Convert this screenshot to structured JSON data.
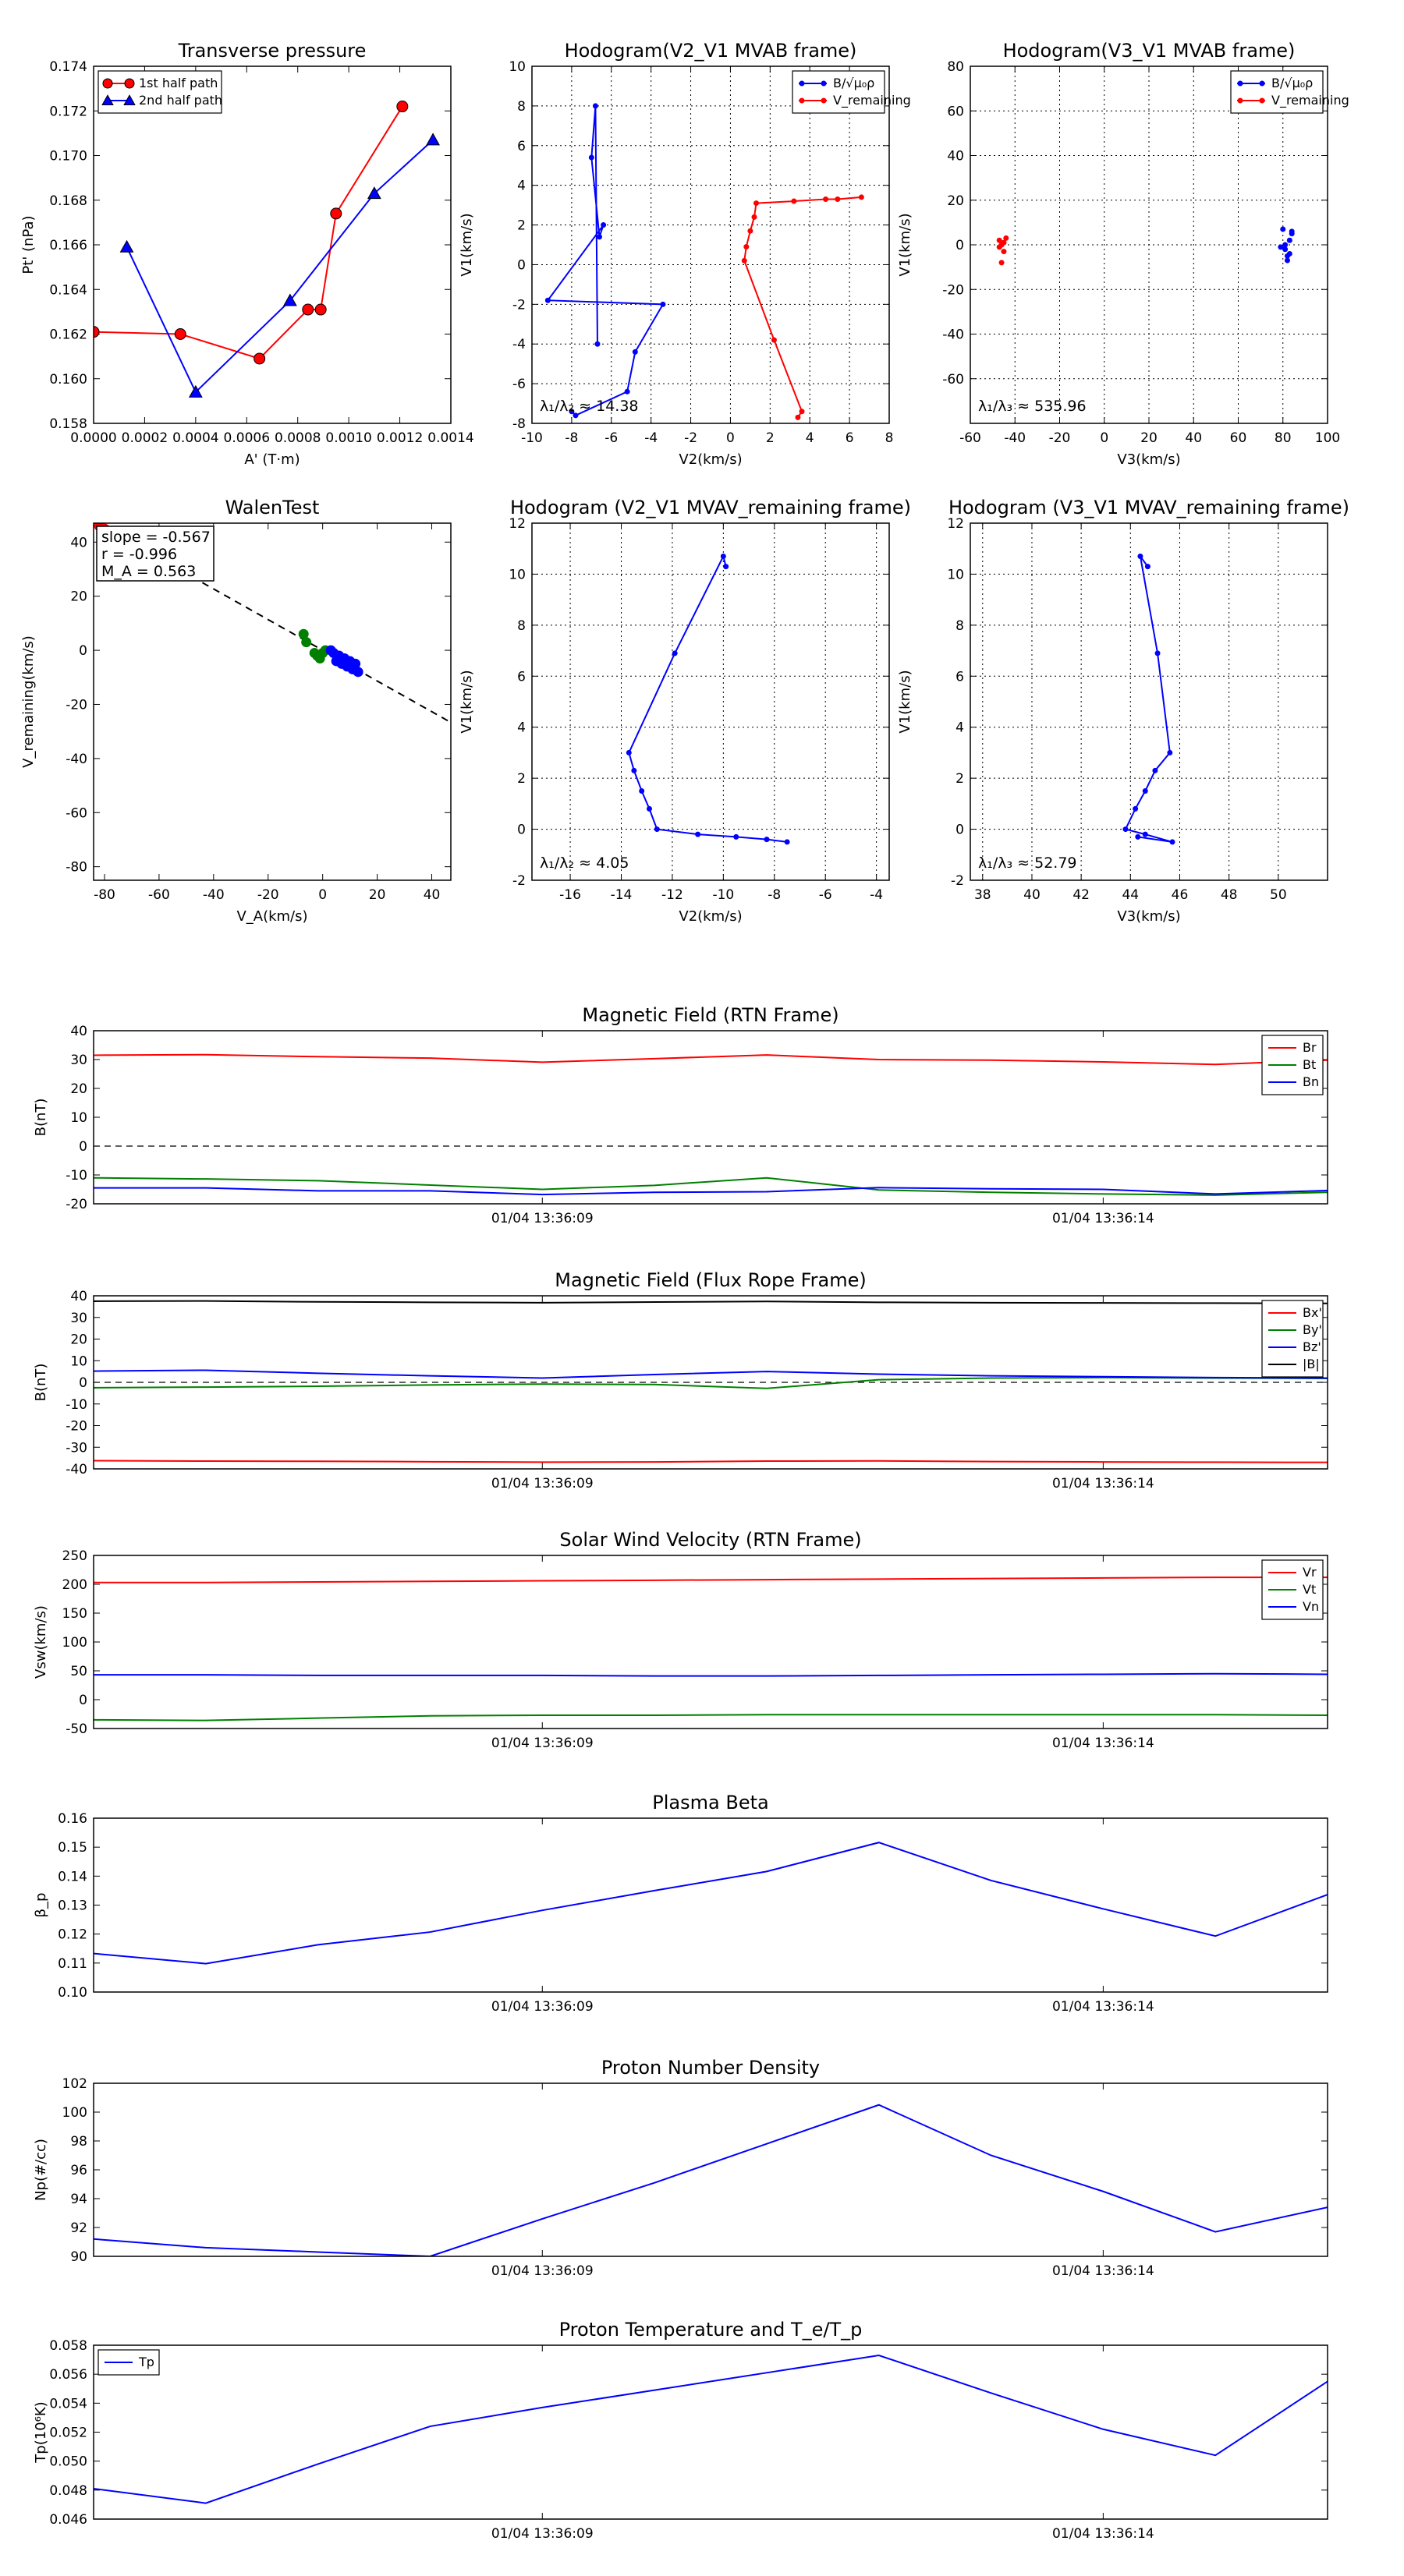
{
  "colors": {
    "red": "#ff0000",
    "blue": "#0000ff",
    "green": "#008000",
    "black": "#000000"
  },
  "chart_data": [
    {
      "id": "transverse-pressure",
      "type": "line",
      "title": "Transverse pressure",
      "xlabel": "A' (T·m)",
      "ylabel": "Pt' (nPa)",
      "xlim": [
        0,
        0.0014
      ],
      "ylim": [
        0.158,
        0.174
      ],
      "xticks": [
        0,
        0.0002,
        0.0004,
        0.0006,
        0.0008,
        0.001,
        0.0012,
        0.0014
      ],
      "xticklabels": [
        "0.0000",
        "0.0002",
        "0.0004",
        "0.0006",
        "0.0008",
        "0.0010",
        "0.0012",
        "0.0014"
      ],
      "yticks": [
        0.158,
        0.16,
        0.162,
        0.164,
        0.166,
        0.168,
        0.17,
        0.172,
        0.174
      ],
      "yticklabels": [
        "0.158",
        "0.160",
        "0.162",
        "0.164",
        "0.166",
        "0.168",
        "0.170",
        "0.172",
        "0.174"
      ],
      "legend": {
        "position": "top-left",
        "entries": [
          {
            "label": "1st half path",
            "color": "red",
            "marker": "circle"
          },
          {
            "label": "2nd half path",
            "color": "blue",
            "marker": "triangle"
          }
        ]
      },
      "series": [
        {
          "name": "1st half path",
          "color": "red",
          "marker": "circle",
          "x": [
            0.0,
            0.00034,
            0.00065,
            0.00084,
            0.00089,
            0.00095,
            0.00121
          ],
          "y": [
            0.1621,
            0.162,
            0.1609,
            0.1631,
            0.1631,
            0.1674,
            0.1722
          ]
        },
        {
          "name": "2nd half path",
          "color": "blue",
          "marker": "triangle",
          "x": [
            0.00013,
            0.0004,
            0.00077,
            0.0011,
            0.00133
          ],
          "y": [
            0.1659,
            0.1594,
            0.1635,
            0.1683,
            0.1707
          ]
        }
      ]
    },
    {
      "id": "hodogram-v2v1-mvab",
      "type": "line",
      "title": "Hodogram(V2_V1 MVAB frame)",
      "xlabel": "V2(km/s)",
      "ylabel": "V1(km/s)",
      "xlim": [
        -10,
        8
      ],
      "ylim": [
        -8,
        10
      ],
      "xticks": [
        -10,
        -8,
        -6,
        -4,
        -2,
        0,
        2,
        4,
        6,
        8
      ],
      "yticks": [
        -8,
        -6,
        -4,
        -2,
        0,
        2,
        4,
        6,
        8,
        10
      ],
      "annotation": "λ₁/λ₂ ≈ 14.38",
      "grid": true,
      "legend": {
        "position": "top-right",
        "entries": [
          {
            "label": "B/√μ₀ρ",
            "color": "blue"
          },
          {
            "label": "V_remaining",
            "color": "red"
          }
        ]
      },
      "series": [
        {
          "name": "B/√μ₀ρ",
          "color": "blue",
          "x": [
            -6.7,
            -6.8,
            -7.0,
            -6.6,
            -6.4,
            -9.2,
            -3.4,
            -4.8,
            -5.2,
            -7.8,
            -8.0
          ],
          "y": [
            -4.0,
            8.0,
            5.4,
            1.4,
            2.0,
            -1.8,
            -2.0,
            -4.4,
            -6.4,
            -7.6,
            -7.4
          ]
        },
        {
          "name": "V_remaining",
          "color": "red",
          "x": [
            6.6,
            5.4,
            4.8,
            3.2,
            1.3,
            1.2,
            1.0,
            0.8,
            0.7,
            2.2,
            3.6,
            3.4
          ],
          "y": [
            3.4,
            3.3,
            3.3,
            3.2,
            3.1,
            2.4,
            1.7,
            0.9,
            0.2,
            -3.8,
            -7.4,
            -7.7
          ]
        }
      ]
    },
    {
      "id": "hodogram-v3v1-mvab",
      "type": "scatter",
      "title": "Hodogram(V3_V1 MVAB frame)",
      "xlabel": "V3(km/s)",
      "ylabel": "V1(km/s)",
      "xlim": [
        -60,
        100
      ],
      "ylim": [
        -80,
        80
      ],
      "xticks": [
        -60,
        -40,
        -20,
        0,
        20,
        40,
        60,
        80,
        100
      ],
      "yticks": [
        -60,
        -40,
        -20,
        0,
        20,
        40,
        60,
        80
      ],
      "annotation": "λ₁/λ₃ ≈ 535.96",
      "grid": true,
      "legend": {
        "position": "top-right",
        "entries": [
          {
            "label": "B/√μ₀ρ",
            "color": "blue"
          },
          {
            "label": "V_remaining",
            "color": "red"
          }
        ]
      },
      "series": [
        {
          "name": "B/√μ₀ρ",
          "color": "blue",
          "x": [
            80,
            81,
            84,
            83,
            82,
            79,
            81,
            83,
            82,
            84
          ],
          "y": [
            7,
            -2,
            6,
            -4,
            -7,
            -1,
            0,
            2,
            -5,
            5
          ]
        },
        {
          "name": "V_remaining",
          "color": "red",
          "x": [
            -46,
            -45,
            -47,
            -44,
            -46,
            -47,
            -45
          ],
          "y": [
            -8,
            -3,
            2,
            3,
            0,
            -1,
            1
          ]
        }
      ]
    },
    {
      "id": "walen-test",
      "type": "scatter",
      "title": "WalenTest",
      "xlabel": "V_A(km/s)",
      "ylabel": "V_remaining(km/s)",
      "xlim": [
        -84,
        47
      ],
      "ylim": [
        -85,
        47
      ],
      "xticks": [
        -80,
        -60,
        -40,
        -20,
        0,
        20,
        40
      ],
      "yticks": [
        -80,
        -60,
        -40,
        -20,
        0,
        20,
        40
      ],
      "annotation_lines": [
        "slope = -0.567",
        "r = -0.996",
        "M_A = 0.563"
      ],
      "fit": {
        "slope": -0.567,
        "intercept": 0
      },
      "series": [
        {
          "name": "red",
          "color": "red",
          "x": [
            -82,
            -80
          ],
          "y": [
            46,
            45
          ]
        },
        {
          "name": "green",
          "color": "green",
          "x": [
            -7,
            -6,
            -3,
            -2,
            -1,
            0,
            1
          ],
          "y": [
            6,
            3,
            -1,
            -2,
            -3,
            -1,
            0
          ]
        },
        {
          "name": "blue",
          "color": "blue",
          "x": [
            3,
            4,
            5,
            6,
            7,
            8,
            9,
            10,
            11,
            12,
            13
          ],
          "y": [
            0,
            -1,
            -4,
            -2,
            -5,
            -3,
            -6,
            -4,
            -7,
            -5,
            -8
          ]
        }
      ]
    },
    {
      "id": "hodogram-v2v1-mvav",
      "type": "line",
      "title": "Hodogram (V2_V1 MVAV_remaining frame)",
      "xlabel": "V2(km/s)",
      "ylabel": "V1(km/s)",
      "xlim": [
        -17.5,
        -3.5
      ],
      "ylim": [
        -2,
        12
      ],
      "xticks": [
        -16,
        -14,
        -12,
        -10,
        -8,
        -6,
        -4
      ],
      "yticks": [
        -2,
        0,
        2,
        4,
        6,
        8,
        10,
        12
      ],
      "annotation": "λ₁/λ₂ ≈ 4.05",
      "grid": true,
      "series": [
        {
          "name": "V",
          "color": "blue",
          "x": [
            -9.9,
            -10.0,
            -11.9,
            -13.7,
            -13.5,
            -13.2,
            -12.9,
            -12.6,
            -11.0,
            -9.5,
            -8.3,
            -7.5
          ],
          "y": [
            10.3,
            10.7,
            6.9,
            3.0,
            2.3,
            1.5,
            0.8,
            0.0,
            -0.2,
            -0.3,
            -0.4,
            -0.5
          ]
        }
      ]
    },
    {
      "id": "hodogram-v3v1-mvav",
      "type": "line",
      "title": "Hodogram (V3_V1 MVAV_remaining frame)",
      "xlabel": "V3(km/s)",
      "ylabel": "V1(km/s)",
      "xlim": [
        37.5,
        52
      ],
      "ylim": [
        -2,
        12
      ],
      "xticks": [
        38,
        40,
        42,
        44,
        46,
        48,
        50
      ],
      "yticks": [
        -2,
        0,
        2,
        4,
        6,
        8,
        10,
        12
      ],
      "annotation": "λ₁/λ₃ ≈ 52.79",
      "grid": true,
      "series": [
        {
          "name": "V",
          "color": "blue",
          "x": [
            44.7,
            44.4,
            45.1,
            45.6,
            45.0,
            44.6,
            44.2,
            43.8,
            44.6,
            45.7,
            44.3
          ],
          "y": [
            10.3,
            10.7,
            6.9,
            3.0,
            2.3,
            1.5,
            0.8,
            0.0,
            -0.2,
            -0.5,
            -0.3
          ]
        }
      ]
    },
    {
      "id": "mag-rtn",
      "type": "line",
      "title": "Magnetic Field (RTN Frame)",
      "ylabel": "B(nT)",
      "xlim": [
        0,
        11
      ],
      "ylim": [
        -20,
        40
      ],
      "yticks": [
        -20,
        -10,
        0,
        10,
        20,
        30,
        40
      ],
      "xticks": [
        4,
        9
      ],
      "xticklabels": [
        "01/04 13:36:09",
        "01/04 13:36:14"
      ],
      "zero_line": true,
      "legend": {
        "position": "top-right",
        "entries": [
          {
            "label": "Br",
            "color": "red"
          },
          {
            "label": "Bt",
            "color": "green"
          },
          {
            "label": "Bn",
            "color": "blue"
          }
        ]
      },
      "x": [
        0,
        1,
        2,
        3,
        4,
        5,
        6,
        7,
        8,
        9,
        10,
        11
      ],
      "series": [
        {
          "name": "Br",
          "color": "red",
          "values": [
            31.5,
            31.7,
            31.0,
            30.5,
            29.1,
            30.3,
            31.6,
            30.0,
            29.8,
            29.2,
            28.3,
            29.8
          ]
        },
        {
          "name": "Bt",
          "color": "green",
          "values": [
            -11.0,
            -11.4,
            -12.0,
            -13.5,
            -15.0,
            -13.6,
            -11.0,
            -15.2,
            -16.0,
            -16.6,
            -17.0,
            -16.0
          ]
        },
        {
          "name": "Bn",
          "color": "blue",
          "values": [
            -14.5,
            -14.5,
            -15.5,
            -15.5,
            -16.8,
            -16.0,
            -15.8,
            -14.4,
            -14.8,
            -15.0,
            -16.6,
            -15.4
          ]
        }
      ]
    },
    {
      "id": "mag-fluxrope",
      "type": "line",
      "title": "Magnetic Field (Flux Rope Frame)",
      "ylabel": "B(nT)",
      "xlim": [
        0,
        11
      ],
      "ylim": [
        -40,
        40
      ],
      "yticks": [
        -40,
        -30,
        -20,
        -10,
        0,
        10,
        20,
        30,
        40
      ],
      "xticks": [
        4,
        9
      ],
      "xticklabels": [
        "01/04 13:36:09",
        "01/04 13:36:14"
      ],
      "zero_line": true,
      "legend": {
        "position": "top-right",
        "entries": [
          {
            "label": "Bx'",
            "color": "red"
          },
          {
            "label": "By'",
            "color": "green"
          },
          {
            "label": "Bz'",
            "color": "blue"
          },
          {
            "label": "|B|",
            "color": "black"
          }
        ]
      },
      "x": [
        0,
        1,
        2,
        3,
        4,
        5,
        6,
        7,
        8,
        9,
        10,
        11
      ],
      "series": [
        {
          "name": "Bx'",
          "color": "red",
          "values": [
            -36.2,
            -36.4,
            -36.5,
            -36.7,
            -36.9,
            -36.8,
            -36.4,
            -36.3,
            -36.6,
            -36.8,
            -36.9,
            -37.0
          ]
        },
        {
          "name": "By'",
          "color": "green",
          "values": [
            -2.5,
            -2.2,
            -1.8,
            -1.2,
            -0.8,
            -1.0,
            -2.8,
            1.2,
            2.0,
            2.2,
            2.0,
            1.8
          ]
        },
        {
          "name": "Bz'",
          "color": "blue",
          "values": [
            5.2,
            5.6,
            4.2,
            3.0,
            2.0,
            3.6,
            5.0,
            3.8,
            3.0,
            2.6,
            2.2,
            2.0
          ]
        },
        {
          "name": "|B|",
          "color": "black",
          "values": [
            37.5,
            37.6,
            37.2,
            37.0,
            36.8,
            37.1,
            37.4,
            37.0,
            36.8,
            36.7,
            36.6,
            36.5
          ]
        }
      ]
    },
    {
      "id": "sw-velocity",
      "type": "line",
      "title": "Solar Wind Velocity (RTN Frame)",
      "ylabel": "Vsw(km/s)",
      "xlim": [
        0,
        11
      ],
      "ylim": [
        -50,
        250
      ],
      "yticks": [
        -50,
        0,
        50,
        100,
        150,
        200,
        250
      ],
      "xticks": [
        4,
        9
      ],
      "xticklabels": [
        "01/04 13:36:09",
        "01/04 13:36:14"
      ],
      "legend": {
        "position": "top-right",
        "entries": [
          {
            "label": "Vr",
            "color": "red"
          },
          {
            "label": "Vt",
            "color": "green"
          },
          {
            "label": "Vn",
            "color": "blue"
          }
        ]
      },
      "x": [
        0,
        1,
        2,
        3,
        4,
        5,
        6,
        7,
        8,
        9,
        10,
        11
      ],
      "series": [
        {
          "name": "Vr",
          "color": "red",
          "values": [
            203,
            203,
            204,
            205,
            206,
            207,
            208,
            209,
            210,
            211,
            212,
            212
          ]
        },
        {
          "name": "Vt",
          "color": "green",
          "values": [
            -35,
            -36,
            -32,
            -28,
            -27,
            -27,
            -26,
            -26,
            -26,
            -26,
            -26,
            -27
          ]
        },
        {
          "name": "Vn",
          "color": "blue",
          "values": [
            43,
            43,
            42,
            42,
            42,
            41,
            41,
            42,
            43,
            44,
            45,
            44
          ]
        }
      ]
    },
    {
      "id": "plasma-beta",
      "type": "line",
      "title": "Plasma Beta",
      "ylabel": "β_p",
      "xlim": [
        0,
        11
      ],
      "ylim": [
        0.1,
        0.16
      ],
      "yticks": [
        0.1,
        0.11,
        0.12,
        0.13,
        0.14,
        0.15,
        0.16
      ],
      "yticklabels": [
        "0.10",
        "0.11",
        "0.12",
        "0.13",
        "0.14",
        "0.15",
        "0.16"
      ],
      "xticks": [
        4,
        9
      ],
      "xticklabels": [
        "01/04 13:36:09",
        "01/04 13:36:14"
      ],
      "x": [
        0,
        1,
        2,
        3,
        4,
        5,
        6,
        7,
        8,
        9,
        10,
        11
      ],
      "series": [
        {
          "name": "beta",
          "color": "blue",
          "values": [
            0.1133,
            0.1098,
            0.1163,
            0.1207,
            0.1282,
            0.135,
            0.1416,
            0.1516,
            0.1385,
            0.1287,
            0.1193,
            0.1336
          ]
        }
      ]
    },
    {
      "id": "proton-density",
      "type": "line",
      "title": "Proton Number Density",
      "ylabel": "Np(#/cc)",
      "xlim": [
        0,
        11
      ],
      "ylim": [
        90,
        102
      ],
      "yticks": [
        90,
        92,
        94,
        96,
        98,
        100,
        102
      ],
      "xticks": [
        4,
        9
      ],
      "xticklabels": [
        "01/04 13:36:09",
        "01/04 13:36:14"
      ],
      "x": [
        0,
        1,
        2,
        3,
        4,
        5,
        6,
        7,
        8,
        9,
        10,
        11
      ],
      "series": [
        {
          "name": "Np",
          "color": "blue",
          "values": [
            91.2,
            90.6,
            90.3,
            90.0,
            92.6,
            95.1,
            97.8,
            100.5,
            97.0,
            94.5,
            91.7,
            93.4
          ]
        }
      ]
    },
    {
      "id": "proton-temperature",
      "type": "line",
      "title": "Proton Temperature and T_e/T_p",
      "ylabel": "Tp(10⁶K)",
      "xlim": [
        0,
        11
      ],
      "ylim": [
        0.046,
        0.058
      ],
      "yticks": [
        0.046,
        0.048,
        0.05,
        0.052,
        0.054,
        0.056,
        0.058
      ],
      "yticklabels": [
        "0.046",
        "0.048",
        "0.050",
        "0.052",
        "0.054",
        "0.056",
        "0.058"
      ],
      "xticks": [
        4,
        9
      ],
      "xticklabels": [
        "01/04 13:36:09",
        "01/04 13:36:14"
      ],
      "legend": {
        "position": "top-left",
        "entries": [
          {
            "label": "Tp",
            "color": "blue"
          }
        ]
      },
      "x": [
        0,
        1,
        2,
        3,
        4,
        5,
        6,
        7,
        8,
        9,
        10,
        11
      ],
      "series": [
        {
          "name": "Tp",
          "color": "blue",
          "values": [
            0.0481,
            0.0471,
            0.0498,
            0.0524,
            0.0537,
            0.0549,
            0.0561,
            0.0573,
            0.0547,
            0.0522,
            0.0504,
            0.0555
          ]
        }
      ]
    }
  ]
}
